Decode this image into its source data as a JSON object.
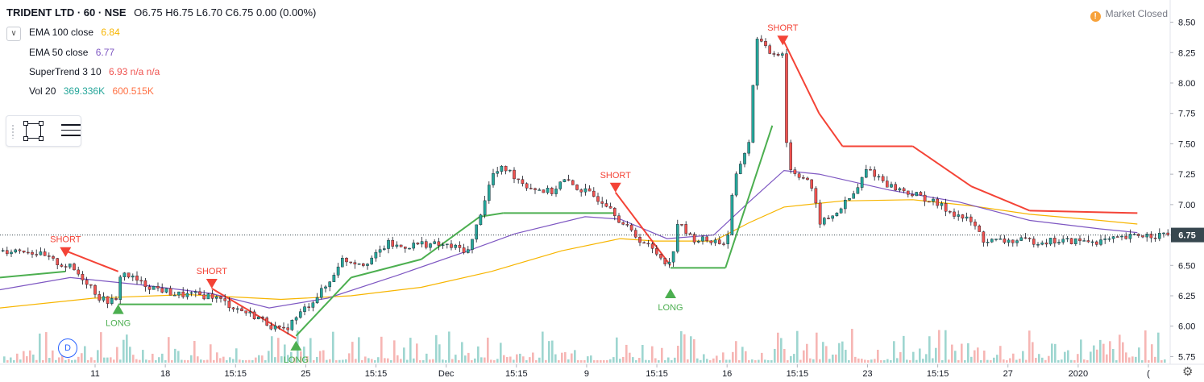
{
  "header": {
    "symbol": "TRIDENT LTD · 60 · NSE",
    "ohlc": "O6.75  H6.75  L6.70  C6.75  0.00 (0.00%)"
  },
  "indicators": [
    {
      "name": "EMA 100 close",
      "value": "6.84",
      "color": "#f7b500"
    },
    {
      "name": "EMA 50 close",
      "value": "6.77",
      "color": "#7e57c2"
    },
    {
      "name": "SuperTrend 3 10",
      "value": "6.93 n/a n/a",
      "color": "#ef5350"
    },
    {
      "name": "Vol 20",
      "value": "369.336K",
      "color": "#26a69a",
      "value2": "600.515K",
      "color2": "#ff7043"
    }
  ],
  "market_status": "Market Closed",
  "d_badge": "D",
  "colors": {
    "up": "#26a69a",
    "down": "#ef5350",
    "ema100": "#f7b500",
    "ema50": "#7e57c2",
    "st_up": "#4caf50",
    "st_down": "#f44336",
    "last_price": "#37474f"
  },
  "chart_data": {
    "type": "candlestick",
    "price_axis": [
      8.5,
      8.25,
      8.0,
      7.75,
      7.5,
      7.25,
      7.0,
      6.75,
      6.5,
      6.25,
      6.0,
      5.75
    ],
    "ylim": [
      5.7,
      8.55
    ],
    "last_price": "6.75",
    "time_axis": [
      "11",
      "18",
      "15:15",
      "25",
      "15:15",
      "Dec",
      "15:15",
      "9",
      "15:15",
      "16",
      "15:15",
      "23",
      "15:15",
      "27",
      "2020",
      "("
    ],
    "signals": [
      {
        "label": "SHORT",
        "type": "short",
        "at": 0.056,
        "price": 6.57
      },
      {
        "label": "LONG",
        "type": "long",
        "at": 0.101,
        "price": 6.18
      },
      {
        "label": "SHORT",
        "type": "short",
        "at": 0.181,
        "price": 6.31
      },
      {
        "label": "LONG",
        "type": "long",
        "at": 0.253,
        "price": 5.88
      },
      {
        "label": "SHORT",
        "type": "short",
        "at": 0.526,
        "price": 7.1
      },
      {
        "label": "LONG",
        "type": "long",
        "at": 0.573,
        "price": 6.31
      },
      {
        "label": "SHORT",
        "type": "short",
        "at": 0.669,
        "price": 8.31
      }
    ],
    "price_path": [
      [
        0.0,
        6.62
      ],
      [
        0.02,
        6.63
      ],
      [
        0.03,
        6.6
      ],
      [
        0.045,
        6.53
      ],
      [
        0.06,
        6.48
      ],
      [
        0.075,
        6.35
      ],
      [
        0.085,
        6.22
      ],
      [
        0.099,
        6.2
      ],
      [
        0.102,
        6.45
      ],
      [
        0.12,
        6.35
      ],
      [
        0.15,
        6.26
      ],
      [
        0.18,
        6.25
      ],
      [
        0.2,
        6.15
      ],
      [
        0.22,
        6.07
      ],
      [
        0.24,
        5.95
      ],
      [
        0.25,
        6.05
      ],
      [
        0.265,
        6.2
      ],
      [
        0.28,
        6.35
      ],
      [
        0.29,
        6.55
      ],
      [
        0.31,
        6.52
      ],
      [
        0.32,
        6.58
      ],
      [
        0.33,
        6.68
      ],
      [
        0.34,
        6.65
      ],
      [
        0.36,
        6.68
      ],
      [
        0.38,
        6.66
      ],
      [
        0.4,
        6.62
      ],
      [
        0.41,
        6.95
      ],
      [
        0.42,
        7.25
      ],
      [
        0.43,
        7.3
      ],
      [
        0.45,
        7.15
      ],
      [
        0.47,
        7.1
      ],
      [
        0.48,
        7.2
      ],
      [
        0.5,
        7.1
      ],
      [
        0.52,
        7.0
      ],
      [
        0.53,
        6.85
      ],
      [
        0.545,
        6.72
      ],
      [
        0.56,
        6.6
      ],
      [
        0.572,
        6.5
      ],
      [
        0.578,
        6.85
      ],
      [
        0.59,
        6.72
      ],
      [
        0.61,
        6.7
      ],
      [
        0.62,
        6.68
      ],
      [
        0.625,
        7.1
      ],
      [
        0.63,
        7.3
      ],
      [
        0.64,
        7.55
      ],
      [
        0.645,
        8.4
      ],
      [
        0.655,
        8.25
      ],
      [
        0.668,
        8.25
      ],
      [
        0.672,
        7.3
      ],
      [
        0.69,
        7.2
      ],
      [
        0.7,
        6.85
      ],
      [
        0.71,
        6.9
      ],
      [
        0.73,
        7.1
      ],
      [
        0.74,
        7.3
      ],
      [
        0.76,
        7.15
      ],
      [
        0.79,
        7.05
      ],
      [
        0.81,
        6.95
      ],
      [
        0.83,
        6.85
      ],
      [
        0.84,
        6.7
      ],
      [
        0.86,
        6.7
      ],
      [
        0.88,
        6.7
      ],
      [
        0.9,
        6.7
      ],
      [
        0.92,
        6.7
      ],
      [
        0.94,
        6.7
      ],
      [
        0.96,
        6.72
      ],
      [
        0.972,
        6.75
      ]
    ],
    "ema100_path": [
      [
        0.0,
        6.15
      ],
      [
        0.08,
        6.23
      ],
      [
        0.16,
        6.26
      ],
      [
        0.24,
        6.22
      ],
      [
        0.3,
        6.25
      ],
      [
        0.36,
        6.32
      ],
      [
        0.42,
        6.45
      ],
      [
        0.48,
        6.62
      ],
      [
        0.53,
        6.72
      ],
      [
        0.56,
        6.7
      ],
      [
        0.61,
        6.7
      ],
      [
        0.64,
        6.85
      ],
      [
        0.67,
        6.98
      ],
      [
        0.72,
        7.03
      ],
      [
        0.78,
        7.04
      ],
      [
        0.83,
        6.99
      ],
      [
        0.88,
        6.92
      ],
      [
        0.94,
        6.87
      ],
      [
        0.972,
        6.84
      ]
    ],
    "ema50_path": [
      [
        0.0,
        6.3
      ],
      [
        0.06,
        6.4
      ],
      [
        0.12,
        6.34
      ],
      [
        0.18,
        6.27
      ],
      [
        0.23,
        6.15
      ],
      [
        0.28,
        6.23
      ],
      [
        0.34,
        6.42
      ],
      [
        0.4,
        6.62
      ],
      [
        0.44,
        6.76
      ],
      [
        0.5,
        6.9
      ],
      [
        0.53,
        6.88
      ],
      [
        0.57,
        6.72
      ],
      [
        0.61,
        6.75
      ],
      [
        0.64,
        7.02
      ],
      [
        0.67,
        7.28
      ],
      [
        0.7,
        7.25
      ],
      [
        0.76,
        7.12
      ],
      [
        0.82,
        7.02
      ],
      [
        0.88,
        6.87
      ],
      [
        0.94,
        6.8
      ],
      [
        0.972,
        6.77
      ]
    ],
    "supertrend_path": [
      [
        0.0,
        6.4,
        "up"
      ],
      [
        0.056,
        6.45,
        "up"
      ],
      [
        0.056,
        6.62,
        "down"
      ],
      [
        0.101,
        6.45,
        "down"
      ],
      [
        0.101,
        6.18,
        "up"
      ],
      [
        0.181,
        6.18,
        "up"
      ],
      [
        0.181,
        6.31,
        "down"
      ],
      [
        0.253,
        5.9,
        "down"
      ],
      [
        0.253,
        5.92,
        "up"
      ],
      [
        0.3,
        6.4,
        "up"
      ],
      [
        0.36,
        6.55,
        "up"
      ],
      [
        0.41,
        6.9,
        "up"
      ],
      [
        0.43,
        6.93,
        "up"
      ],
      [
        0.526,
        6.93,
        "up"
      ],
      [
        0.526,
        7.1,
        "down"
      ],
      [
        0.573,
        6.5,
        "down"
      ],
      [
        0.573,
        6.48,
        "up"
      ],
      [
        0.62,
        6.48,
        "up"
      ],
      [
        0.66,
        7.65,
        "up"
      ],
      [
        0.669,
        8.36,
        "down"
      ],
      [
        0.7,
        7.75,
        "down"
      ],
      [
        0.72,
        7.48,
        "down"
      ],
      [
        0.78,
        7.48,
        "down"
      ],
      [
        0.83,
        7.15,
        "down"
      ],
      [
        0.88,
        6.95,
        "down"
      ],
      [
        0.972,
        6.93,
        "down"
      ]
    ]
  }
}
